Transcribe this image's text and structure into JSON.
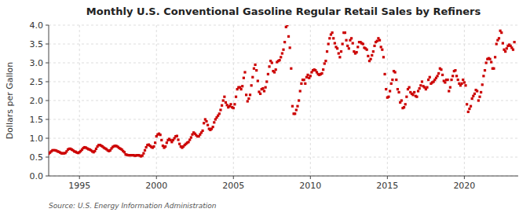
{
  "chart_data": {
    "type": "scatter",
    "title": "Monthly U.S. Conventional Gasoline Regular Retail Sales by Refiners",
    "y_label": "Dollars per Gallon",
    "annotations": [
      "Source: U.S. Energy Information Administration"
    ],
    "color": "#cc0000",
    "marker": "square",
    "grid": true,
    "xlim": [
      1993.0,
      2023.5
    ],
    "ylim": [
      0.0,
      4.0
    ],
    "xticks": [
      1995,
      2000,
      2005,
      2010,
      2015,
      2020
    ],
    "yticks": [
      {
        "value": 0.0,
        "label": "0.0"
      },
      0.5,
      {
        "value": 1.0,
        "label": "1.0"
      },
      1.5,
      {
        "value": 2.0,
        "label": "2.0"
      },
      2.5,
      {
        "value": 3.0,
        "label": "3.0"
      },
      3.5,
      {
        "value": 4.0,
        "label": "4.0"
      }
    ],
    "x": [
      1993.0,
      1993.083,
      1993.167,
      1993.25,
      1993.333,
      1993.417,
      1993.5,
      1993.583,
      1993.667,
      1993.75,
      1993.833,
      1993.917,
      1994.0,
      1994.083,
      1994.167,
      1994.25,
      1994.333,
      1994.417,
      1994.5,
      1994.583,
      1994.667,
      1994.75,
      1994.833,
      1994.917,
      1995.0,
      1995.083,
      1995.167,
      1995.25,
      1995.333,
      1995.417,
      1995.5,
      1995.583,
      1995.667,
      1995.75,
      1995.833,
      1995.917,
      1996.0,
      1996.083,
      1996.167,
      1996.25,
      1996.333,
      1996.417,
      1996.5,
      1996.583,
      1996.667,
      1996.75,
      1996.833,
      1996.917,
      1997.0,
      1997.083,
      1997.167,
      1997.25,
      1997.333,
      1997.417,
      1997.5,
      1997.583,
      1997.667,
      1997.75,
      1997.833,
      1997.917,
      1998.0,
      1998.083,
      1998.167,
      1998.25,
      1998.333,
      1998.417,
      1998.5,
      1998.583,
      1998.667,
      1998.75,
      1998.833,
      1998.917,
      1999.0,
      1999.083,
      1999.167,
      1999.25,
      1999.333,
      1999.417,
      1999.5,
      1999.583,
      1999.667,
      1999.75,
      1999.833,
      1999.917,
      2000.0,
      2000.083,
      2000.167,
      2000.25,
      2000.333,
      2000.417,
      2000.5,
      2000.583,
      2000.667,
      2000.75,
      2000.833,
      2000.917,
      2001.0,
      2001.083,
      2001.167,
      2001.25,
      2001.333,
      2001.417,
      2001.5,
      2001.583,
      2001.667,
      2001.75,
      2001.833,
      2001.917,
      2002.0,
      2002.083,
      2002.167,
      2002.25,
      2002.333,
      2002.417,
      2002.5,
      2002.583,
      2002.667,
      2002.75,
      2002.833,
      2002.917,
      2003.0,
      2003.083,
      2003.167,
      2003.25,
      2003.333,
      2003.417,
      2003.5,
      2003.583,
      2003.667,
      2003.75,
      2003.833,
      2003.917,
      2004.0,
      2004.083,
      2004.167,
      2004.25,
      2004.333,
      2004.417,
      2004.5,
      2004.583,
      2004.667,
      2004.75,
      2004.833,
      2004.917,
      2005.0,
      2005.083,
      2005.167,
      2005.25,
      2005.333,
      2005.417,
      2005.5,
      2005.583,
      2005.667,
      2005.75,
      2005.833,
      2005.917,
      2006.0,
      2006.083,
      2006.167,
      2006.25,
      2006.333,
      2006.417,
      2006.5,
      2006.583,
      2006.667,
      2006.75,
      2006.833,
      2006.917,
      2007.0,
      2007.083,
      2007.167,
      2007.25,
      2007.333,
      2007.417,
      2007.5,
      2007.583,
      2007.667,
      2007.75,
      2007.833,
      2007.917,
      2008.0,
      2008.083,
      2008.167,
      2008.25,
      2008.333,
      2008.417,
      2008.5,
      2008.583,
      2008.667,
      2008.75,
      2008.833,
      2008.917,
      2009.0,
      2009.083,
      2009.167,
      2009.25,
      2009.333,
      2009.417,
      2009.5,
      2009.583,
      2009.667,
      2009.75,
      2009.833,
      2009.917,
      2010.0,
      2010.083,
      2010.167,
      2010.25,
      2010.333,
      2010.417,
      2010.5,
      2010.583,
      2010.667,
      2010.75,
      2010.833,
      2010.917,
      2011.0,
      2011.083,
      2011.167,
      2011.25,
      2011.333,
      2011.417,
      2011.5,
      2011.583,
      2011.667,
      2011.75,
      2011.833,
      2011.917,
      2012.0,
      2012.083,
      2012.167,
      2012.25,
      2012.333,
      2012.417,
      2012.5,
      2012.583,
      2012.667,
      2012.75,
      2012.833,
      2012.917,
      2013.0,
      2013.083,
      2013.167,
      2013.25,
      2013.333,
      2013.417,
      2013.5,
      2013.583,
      2013.667,
      2013.75,
      2013.833,
      2013.917,
      2014.0,
      2014.083,
      2014.167,
      2014.25,
      2014.333,
      2014.417,
      2014.5,
      2014.583,
      2014.667,
      2014.75,
      2014.833,
      2014.917,
      2015.0,
      2015.083,
      2015.167,
      2015.25,
      2015.333,
      2015.417,
      2015.5,
      2015.583,
      2015.667,
      2015.75,
      2015.833,
      2015.917,
      2016.0,
      2016.083,
      2016.167,
      2016.25,
      2016.333,
      2016.417,
      2016.5,
      2016.583,
      2016.667,
      2016.75,
      2016.833,
      2016.917,
      2017.0,
      2017.083,
      2017.167,
      2017.25,
      2017.333,
      2017.417,
      2017.5,
      2017.583,
      2017.667,
      2017.75,
      2017.833,
      2017.917,
      2018.0,
      2018.083,
      2018.167,
      2018.25,
      2018.333,
      2018.417,
      2018.5,
      2018.583,
      2018.667,
      2018.75,
      2018.833,
      2018.917,
      2019.0,
      2019.083,
      2019.167,
      2019.25,
      2019.333,
      2019.417,
      2019.5,
      2019.583,
      2019.667,
      2019.75,
      2019.833,
      2019.917,
      2020.0,
      2020.083,
      2020.167,
      2020.25,
      2020.333,
      2020.417,
      2020.5,
      2020.583,
      2020.667,
      2020.75,
      2020.833,
      2020.917,
      2021.0,
      2021.083,
      2021.167,
      2021.25,
      2021.333,
      2021.417,
      2021.5,
      2021.583,
      2021.667,
      2021.75,
      2021.833,
      2021.917,
      2022.0,
      2022.083,
      2022.167,
      2022.25,
      2022.333,
      2022.417,
      2022.5,
      2022.583,
      2022.667,
      2022.75,
      2022.833,
      2022.917,
      2023.0,
      2023.083,
      2023.167,
      2023.25
    ],
    "values": [
      0.59,
      0.62,
      0.65,
      0.68,
      0.68,
      0.68,
      0.67,
      0.65,
      0.64,
      0.62,
      0.6,
      0.6,
      0.6,
      0.61,
      0.65,
      0.7,
      0.72,
      0.72,
      0.7,
      0.68,
      0.65,
      0.64,
      0.62,
      0.61,
      0.63,
      0.66,
      0.7,
      0.74,
      0.76,
      0.75,
      0.73,
      0.71,
      0.7,
      0.68,
      0.65,
      0.63,
      0.66,
      0.72,
      0.78,
      0.82,
      0.82,
      0.8,
      0.78,
      0.75,
      0.73,
      0.71,
      0.68,
      0.66,
      0.68,
      0.73,
      0.77,
      0.79,
      0.8,
      0.79,
      0.77,
      0.74,
      0.72,
      0.7,
      0.66,
      0.63,
      0.57,
      0.56,
      0.55,
      0.55,
      0.55,
      0.55,
      0.55,
      0.54,
      0.54,
      0.55,
      0.55,
      0.54,
      0.52,
      0.54,
      0.6,
      0.68,
      0.76,
      0.82,
      0.83,
      0.8,
      0.77,
      0.75,
      0.78,
      0.88,
      1.05,
      1.1,
      1.12,
      1.09,
      0.95,
      0.8,
      0.75,
      0.78,
      0.88,
      0.95,
      0.98,
      0.95,
      0.9,
      0.95,
      1.0,
      1.05,
      1.06,
      0.96,
      0.85,
      0.78,
      0.75,
      0.78,
      0.82,
      0.85,
      0.88,
      0.9,
      0.96,
      1.02,
      1.1,
      1.15,
      1.12,
      1.08,
      1.05,
      1.05,
      1.1,
      1.15,
      1.2,
      1.4,
      1.5,
      1.45,
      1.35,
      1.25,
      1.22,
      1.25,
      1.3,
      1.42,
      1.5,
      1.55,
      1.6,
      1.65,
      1.75,
      1.87,
      2.0,
      2.1,
      1.95,
      1.88,
      1.82,
      1.85,
      1.9,
      1.82,
      1.8,
      1.9,
      2.1,
      2.3,
      2.35,
      2.35,
      2.3,
      2.38,
      2.6,
      2.75,
      2.15,
      1.98,
      2.05,
      2.15,
      2.4,
      2.62,
      2.85,
      2.95,
      2.8,
      2.52,
      2.23,
      2.18,
      2.3,
      2.32,
      2.25,
      2.35,
      2.5,
      2.7,
      2.9,
      3.05,
      3.0,
      2.78,
      2.75,
      2.82,
      3.02,
      3.05,
      3.07,
      3.15,
      3.25,
      3.35,
      3.55,
      3.95,
      4.0,
      3.7,
      3.4,
      2.85,
      1.85,
      1.65,
      1.65,
      1.75,
      1.85,
      2.0,
      2.25,
      2.45,
      2.55,
      2.55,
      2.45,
      2.62,
      2.68,
      2.6,
      2.65,
      2.75,
      2.8,
      2.82,
      2.8,
      2.75,
      2.7,
      2.68,
      2.7,
      2.72,
      2.82,
      2.98,
      3.05,
      3.3,
      3.5,
      3.65,
      3.75,
      3.8,
      3.65,
      3.52,
      3.42,
      3.38,
      3.25,
      3.15,
      3.3,
      3.5,
      3.8,
      3.8,
      3.6,
      3.45,
      3.38,
      3.6,
      3.65,
      3.52,
      3.3,
      3.25,
      3.28,
      3.42,
      3.55,
      3.55,
      3.52,
      3.5,
      3.4,
      3.38,
      3.35,
      3.18,
      3.05,
      3.1,
      3.2,
      3.3,
      3.45,
      3.55,
      3.58,
      3.65,
      3.6,
      3.42,
      3.35,
      3.15,
      2.7,
      2.3,
      2.08,
      2.1,
      2.25,
      2.45,
      2.55,
      2.78,
      2.75,
      2.55,
      2.3,
      2.22,
      1.95,
      2.0,
      1.8,
      1.82,
      1.9,
      2.1,
      2.3,
      2.35,
      2.22,
      2.18,
      2.15,
      2.22,
      2.12,
      2.1,
      2.25,
      2.32,
      2.4,
      2.5,
      2.38,
      2.35,
      2.3,
      2.35,
      2.55,
      2.62,
      2.45,
      2.48,
      2.5,
      2.55,
      2.6,
      2.65,
      2.72,
      2.85,
      2.82,
      2.68,
      2.52,
      2.48,
      2.55,
      2.55,
      2.25,
      2.35,
      2.55,
      2.65,
      2.78,
      2.8,
      2.65,
      2.55,
      2.45,
      2.4,
      2.45,
      2.55,
      2.48,
      2.4,
      1.9,
      1.7,
      1.78,
      1.85,
      2.05,
      2.12,
      2.18,
      2.28,
      2.25,
      2.0,
      2.1,
      2.22,
      2.42,
      2.65,
      2.8,
      3.0,
      3.1,
      3.12,
      3.1,
      3.02,
      2.85,
      2.85,
      3.15,
      3.5,
      3.6,
      3.65,
      3.85,
      3.8,
      3.52,
      3.35,
      3.3,
      3.38,
      3.45,
      3.48,
      3.45,
      3.4,
      3.35,
      3.55
    ]
  }
}
